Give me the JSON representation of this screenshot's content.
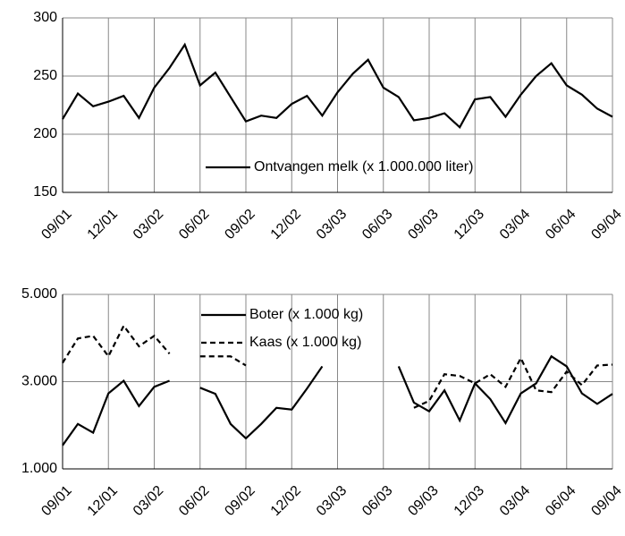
{
  "chart_data": [
    {
      "type": "line",
      "categories": [
        "09/01",
        null,
        null,
        "12/01",
        null,
        null,
        "03/02",
        null,
        null,
        "06/02",
        null,
        null,
        "09/02",
        null,
        null,
        "12/02",
        null,
        null,
        "03/03",
        null,
        null,
        "06/03",
        null,
        null,
        "09/03",
        null,
        null,
        "12/03",
        null,
        null,
        "03/04",
        null,
        null,
        "06/04",
        null,
        null,
        "09/04"
      ],
      "series": [
        {
          "name": "Ontvangen melk (x 1.000.000 liter)",
          "color": "#000000",
          "values": [
            213,
            235,
            224,
            228,
            233,
            214,
            240,
            257,
            277,
            242,
            253,
            232,
            211,
            216,
            214,
            226,
            233,
            216,
            236,
            252,
            264,
            240,
            232,
            212,
            214,
            218,
            206,
            230,
            232,
            215,
            234,
            250,
            261,
            242,
            234,
            222,
            215
          ]
        }
      ],
      "ylim": [
        150,
        300
      ],
      "yticks": [
        150,
        200,
        250,
        300
      ],
      "grid": true
    },
    {
      "type": "line",
      "categories": [
        "09/01",
        null,
        null,
        "12/01",
        null,
        null,
        "03/02",
        null,
        null,
        "06/02",
        null,
        null,
        "09/02",
        null,
        null,
        "12/02",
        null,
        null,
        "03/03",
        null,
        null,
        "06/03",
        null,
        null,
        "09/03",
        null,
        null,
        "12/03",
        null,
        null,
        "03/04",
        null,
        null,
        "06/04",
        null,
        null,
        "09/04"
      ],
      "series": [
        {
          "name": "Boter (x 1.000 kg)",
          "color": "#000000",
          "dash": "none",
          "values": [
            1540,
            2030,
            1830,
            2730,
            3020,
            2440,
            2880,
            3020,
            null,
            2860,
            2720,
            2030,
            1700,
            2030,
            2400,
            2360,
            2840,
            3350,
            null,
            null,
            null,
            null,
            3350,
            2520,
            2320,
            2800,
            2110,
            2960,
            2600,
            2050,
            2730,
            2960,
            3580,
            3350,
            2730,
            2490,
            2720
          ]
        },
        {
          "name": "Kaas (x 1.000 kg)",
          "color": "#000000",
          "dash": "6,4",
          "values": [
            3430,
            3990,
            4050,
            3580,
            4280,
            3810,
            4050,
            3640,
            null,
            3580,
            3580,
            3580,
            3370,
            null,
            null,
            null,
            null,
            null,
            null,
            null,
            null,
            null,
            null,
            2400,
            2560,
            3170,
            3130,
            2960,
            3170,
            2880,
            3540,
            2800,
            2760,
            3230,
            2920,
            3370,
            3390
          ]
        }
      ],
      "ylim": [
        1000,
        5000
      ],
      "yticks": [
        {
          "value": 1000,
          "label": "1.000"
        },
        {
          "value": 3000,
          "label": "3.000"
        },
        {
          "value": 5000,
          "label": "5.000"
        }
      ],
      "grid": true
    }
  ]
}
